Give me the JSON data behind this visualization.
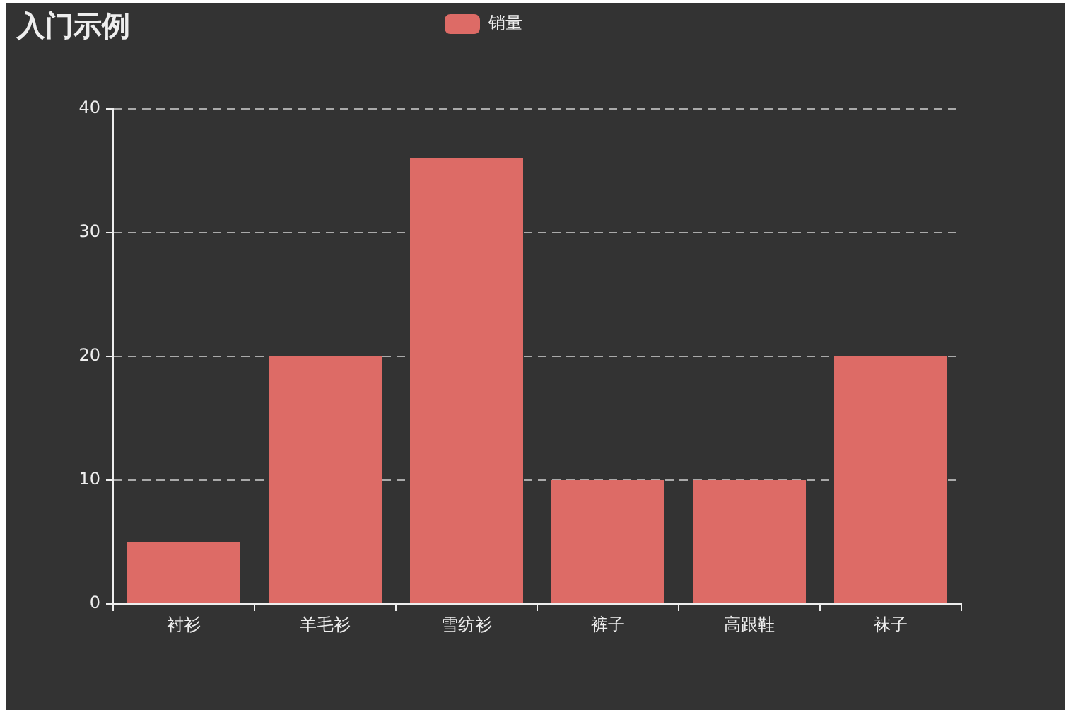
{
  "chart_data": {
    "type": "bar",
    "title": "入门示例",
    "categories": [
      "衬衫",
      "羊毛衫",
      "雪纺衫",
      "裤子",
      "高跟鞋",
      "袜子"
    ],
    "series": [
      {
        "name": "销量",
        "color": "#dd6b66",
        "values": [
          5,
          20,
          36,
          10,
          10,
          20
        ]
      }
    ],
    "ylim": [
      0,
      40
    ],
    "yticks": [
      0,
      10,
      20,
      30,
      40
    ],
    "grid": "y",
    "legend": "top"
  }
}
